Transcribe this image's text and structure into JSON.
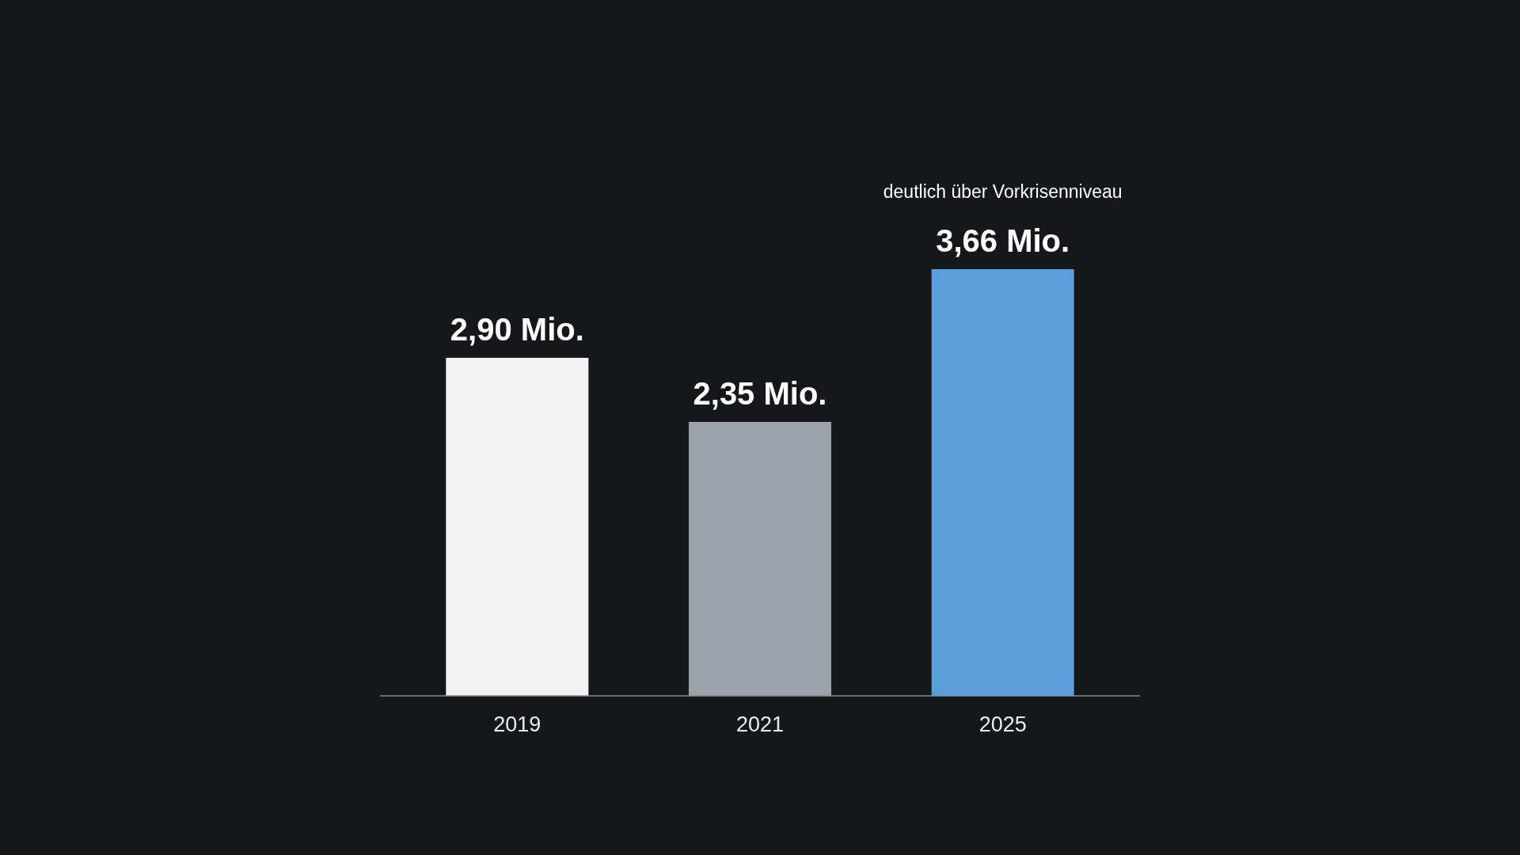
{
  "chart_data": {
    "type": "bar",
    "categories": [
      "2019",
      "2021",
      "2025"
    ],
    "values": [
      2.9,
      2.35,
      3.66
    ],
    "colors": [
      "#f2f2f2",
      "#9ca3ab",
      "#5b9fd9"
    ],
    "value_labels": [
      "2,90 Mio.",
      "2,35 Mio.",
      "3,66 Mio."
    ],
    "annotations": [
      "deutlich über Vorkrisenniveau"
    ]
  }
}
